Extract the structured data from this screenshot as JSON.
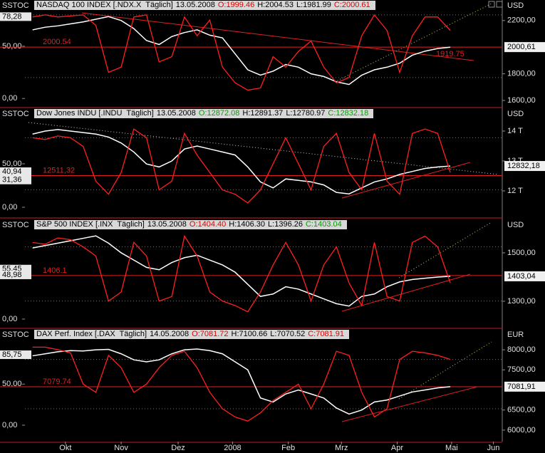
{
  "chart_data": [
    {
      "type": "line",
      "title": "NASDAQ 100 INDEX [.NDX.X  Täglich]",
      "date": "13.05.2008",
      "ohlc": [
        {
          "text": "O:1999.46",
          "color": "#e00000"
        },
        {
          "text": "H:2004.53",
          "color": "#000000"
        },
        {
          "text": "L:1981.99",
          "color": "#000000"
        },
        {
          "text": "C:2000.61",
          "color": "#e00000"
        }
      ],
      "left_label": "SSTOC",
      "currency": "USD",
      "x": [
        0,
        1,
        2,
        3,
        4,
        5,
        6,
        7,
        8,
        9,
        10,
        11,
        12,
        13,
        14,
        15,
        16,
        17,
        18,
        19,
        20,
        21,
        22,
        23,
        24,
        25,
        26,
        27,
        28,
        29,
        30,
        31,
        32,
        33
      ],
      "xlim": [
        -0.6,
        37.1
      ],
      "ylim": [
        -8,
        84
      ],
      "y2lim": [
        1552,
        2274
      ],
      "yticks": [
        {
          "value": 50,
          "label": "50,00"
        },
        {
          "value": 0,
          "label": "0,00"
        }
      ],
      "y2ticks": [
        {
          "value": 2200,
          "label": "2200,00"
        },
        {
          "value": 1800,
          "label": "1800,00"
        },
        {
          "value": 1600,
          "label": "1600,00"
        }
      ],
      "stoch_bands": [
        20,
        80
      ],
      "left_markers": [
        {
          "value": 78.28,
          "label": "78,28"
        }
      ],
      "price_marker": {
        "value": 2000.61,
        "label": "2000,61"
      },
      "level": {
        "value": 2000.54,
        "label": "2000.54"
      },
      "trend_label": {
        "value": 1919.75,
        "label": "1919.75"
      },
      "series": [
        {
          "color": "#ffffff",
          "axis": "y2",
          "values": [
            2130,
            2150,
            2160,
            2175,
            2190,
            2210,
            2230,
            2200,
            2140,
            2050,
            2020,
            2080,
            2110,
            2130,
            2090,
            2070,
            1950,
            1830,
            1790,
            1820,
            1870,
            1850,
            1800,
            1780,
            1740,
            1720,
            1790,
            1830,
            1850,
            1880,
            1940,
            1970,
            1990,
            2000
          ]
        },
        {
          "color": "#ff2020",
          "axis": "y",
          "values": [
            78,
            80,
            78,
            79,
            80,
            70,
            25,
            30,
            78,
            80,
            35,
            40,
            78,
            60,
            75,
            30,
            15,
            8,
            10,
            40,
            30,
            45,
            55,
            30,
            15,
            20,
            60,
            80,
            65,
            25,
            60,
            78,
            78,
            65
          ]
        }
      ]
    },
    {
      "type": "line",
      "title": "Dow Jones INDU [.INDU  Täglich]",
      "date": "13.05.2008",
      "ohlc": [
        {
          "text": "O:12872.08",
          "color": "#00a000"
        },
        {
          "text": "H:12891.37",
          "color": "#000000"
        },
        {
          "text": "L:12780.97",
          "color": "#000000"
        },
        {
          "text": "C:12832.18",
          "color": "#00a000"
        }
      ],
      "left_label": "SSTOC",
      "currency": "USD",
      "x": [
        0,
        1,
        2,
        3,
        4,
        5,
        6,
        7,
        8,
        9,
        10,
        11,
        12,
        13,
        14,
        15,
        16,
        17,
        18,
        19,
        20,
        21,
        22,
        23,
        24,
        25,
        26,
        27,
        28,
        29,
        30,
        31,
        32,
        33
      ],
      "xlim": [
        -0.6,
        37.1
      ],
      "ylim": [
        -11.5,
        101.6
      ],
      "y2lim": [
        11119,
        14405
      ],
      "yticks": [
        {
          "value": 50,
          "label": "50,00"
        },
        {
          "value": 0,
          "label": "0,00"
        }
      ],
      "y2ticks": [
        {
          "value": 14000,
          "label": "14 T"
        },
        {
          "value": 13000,
          "label": "13 T"
        },
        {
          "value": 12000,
          "label": "12 T"
        }
      ],
      "stoch_bands": [
        20,
        80
      ],
      "left_markers": [
        {
          "value": 40.94,
          "label": "40,94"
        },
        {
          "value": 31.36,
          "label": "31,36"
        }
      ],
      "price_marker": {
        "value": 12832.18,
        "label": "12832,18"
      },
      "level": {
        "value": 12511.32,
        "label": "12511,32"
      },
      "series": [
        {
          "color": "#ffffff",
          "axis": "y2",
          "values": [
            13900,
            14000,
            14050,
            14000,
            13950,
            13900,
            13800,
            13600,
            13300,
            12900,
            12800,
            13000,
            13400,
            13500,
            13400,
            13300,
            13200,
            12800,
            12300,
            12100,
            12400,
            12350,
            12300,
            12200,
            11950,
            11900,
            12100,
            12300,
            12400,
            12550,
            12650,
            12750,
            12800,
            12830
          ]
        },
        {
          "color": "#ff2020",
          "axis": "y",
          "values": [
            80,
            78,
            82,
            80,
            70,
            30,
            15,
            40,
            90,
            80,
            20,
            30,
            85,
            60,
            40,
            20,
            15,
            5,
            20,
            50,
            80,
            50,
            20,
            70,
            85,
            40,
            20,
            85,
            30,
            15,
            85,
            90,
            85,
            40
          ]
        }
      ]
    },
    {
      "type": "line",
      "title": "S&P 500 INDEX [.INX  Täglich]",
      "date": "13.05.2008",
      "ohlc": [
        {
          "text": "O:1404.40",
          "color": "#e00000"
        },
        {
          "text": "H:1406.30",
          "color": "#000000"
        },
        {
          "text": "L:1396.26",
          "color": "#000000"
        },
        {
          "text": "C:1403.04",
          "color": "#00a000"
        }
      ],
      "left_label": "SSTOC",
      "currency": "USD",
      "x": [
        0,
        1,
        2,
        3,
        4,
        5,
        6,
        7,
        8,
        9,
        10,
        11,
        12,
        13,
        14,
        15,
        16,
        17,
        18,
        19,
        20,
        21,
        22,
        23,
        24,
        25,
        26,
        27,
        28,
        29,
        30,
        31,
        32,
        33
      ],
      "xlim": [
        -0.6,
        37.1
      ],
      "ylim": [
        -9.5,
        98.7
      ],
      "y2lim": [
        1191,
        1594
      ],
      "yticks": [
        {
          "value": 0,
          "label": "0,00"
        }
      ],
      "y2ticks": [
        {
          "value": 1500,
          "label": "1500,00"
        },
        {
          "value": 1300,
          "label": "1300,00"
        }
      ],
      "stoch_bands": [
        20,
        80
      ],
      "left_markers": [
        {
          "value": 55.45,
          "label": "55,45"
        },
        {
          "value": 48.98,
          "label": "48,98"
        }
      ],
      "price_marker": {
        "value": 1403.04,
        "label": "1403,04"
      },
      "level": {
        "value": 1406.1,
        "label": "1406.1"
      },
      "series": [
        {
          "color": "#ffffff",
          "axis": "y2",
          "values": [
            1520,
            1530,
            1540,
            1550,
            1560,
            1570,
            1540,
            1500,
            1470,
            1440,
            1430,
            1460,
            1480,
            1490,
            1470,
            1450,
            1420,
            1370,
            1320,
            1330,
            1360,
            1350,
            1330,
            1310,
            1290,
            1280,
            1320,
            1330,
            1360,
            1380,
            1390,
            1395,
            1400,
            1403
          ]
        },
        {
          "color": "#ff2020",
          "axis": "y",
          "values": [
            85,
            83,
            90,
            88,
            80,
            70,
            20,
            30,
            85,
            70,
            20,
            25,
            92,
            70,
            30,
            20,
            15,
            8,
            30,
            60,
            85,
            60,
            20,
            60,
            80,
            40,
            15,
            85,
            25,
            20,
            85,
            92,
            80,
            40
          ]
        }
      ]
    },
    {
      "type": "line",
      "title": "DAX Perf. Index [.DAX  Täglich]",
      "date": "14.05.2008",
      "ohlc": [
        {
          "text": "O:7081.72",
          "color": "#e00000"
        },
        {
          "text": "H:7100.66",
          "color": "#000000"
        },
        {
          "text": "L:7070.52",
          "color": "#000000"
        },
        {
          "text": "C:7081.91",
          "color": "#e00000"
        }
      ],
      "left_label": "SSTOC",
      "currency": "EUR",
      "x": [
        0,
        1,
        2,
        3,
        4,
        5,
        6,
        7,
        8,
        9,
        10,
        11,
        12,
        13,
        14,
        15,
        16,
        17,
        18,
        19,
        20,
        21,
        22,
        23,
        24,
        25,
        26,
        27,
        28,
        29,
        30,
        31,
        32,
        33
      ],
      "xlim": [
        -0.6,
        37.1
      ],
      "ylim": [
        -20,
        104
      ],
      "y2lim": [
        5714,
        8250
      ],
      "xticks": [
        {
          "value": 2.6,
          "label": "Okt"
        },
        {
          "value": 7,
          "label": "Nov"
        },
        {
          "value": 11.5,
          "label": "Dez"
        },
        {
          "value": 15.8,
          "label": "2008"
        },
        {
          "value": 20.2,
          "label": "Feb"
        },
        {
          "value": 24.4,
          "label": "Mrz"
        },
        {
          "value": 28.8,
          "label": "Apr"
        },
        {
          "value": 33.1,
          "label": "Mai"
        },
        {
          "value": 36.4,
          "label": "Jun"
        }
      ],
      "yticks": [
        {
          "value": 50,
          "label": "50,00"
        },
        {
          "value": 0,
          "label": "0,00"
        }
      ],
      "y2ticks": [
        {
          "value": 8000,
          "label": "8000,00"
        },
        {
          "value": 7500,
          "label": "7500,00"
        },
        {
          "value": 6500,
          "label": "6500,00"
        },
        {
          "value": 6000,
          "label": "6000,00"
        }
      ],
      "stoch_bands": [
        20,
        80
      ],
      "left_markers": [
        {
          "value": 85.75,
          "label": "85,75"
        }
      ],
      "price_marker": {
        "value": 7081.91,
        "label": "7081,91"
      },
      "level": {
        "value": 7079.74,
        "label": "7079.74"
      },
      "series": [
        {
          "color": "#ffffff",
          "axis": "y2",
          "values": [
            7850,
            7900,
            7950,
            7980,
            7970,
            8000,
            8010,
            7900,
            7750,
            7700,
            7750,
            7900,
            8000,
            8020,
            7980,
            7900,
            7700,
            7500,
            6800,
            6700,
            6900,
            7000,
            6900,
            6800,
            6550,
            6400,
            6500,
            6700,
            6750,
            6850,
            6950,
            7000,
            7050,
            7082
          ]
        },
        {
          "color": "#ff2020",
          "axis": "y",
          "values": [
            95,
            95,
            92,
            88,
            50,
            40,
            85,
            70,
            40,
            50,
            70,
            85,
            90,
            70,
            40,
            20,
            10,
            5,
            15,
            30,
            40,
            50,
            20,
            50,
            90,
            85,
            40,
            10,
            20,
            80,
            90,
            88,
            85,
            80
          ]
        }
      ]
    }
  ]
}
